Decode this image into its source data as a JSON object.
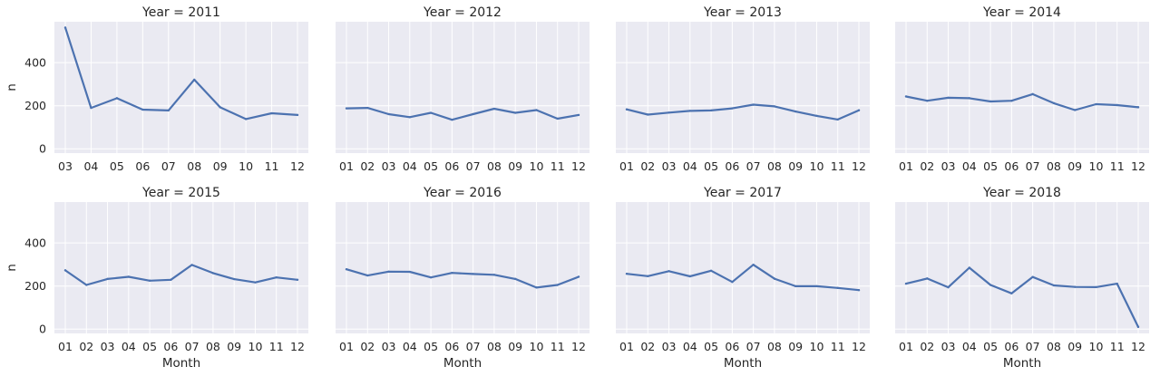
{
  "chart_data": [
    {
      "type": "line",
      "title": "Year = 2011",
      "xlabel": "",
      "ylabel": "n",
      "x": [
        "03",
        "04",
        "05",
        "06",
        "07",
        "08",
        "09",
        "10",
        "11",
        "12"
      ],
      "y": [
        563,
        190,
        235,
        182,
        178,
        321,
        193,
        138,
        165,
        157
      ]
    },
    {
      "type": "line",
      "title": "Year = 2012",
      "xlabel": "",
      "ylabel": "",
      "x": [
        "01",
        "02",
        "03",
        "04",
        "05",
        "06",
        "07",
        "08",
        "09",
        "10",
        "11",
        "12"
      ],
      "y": [
        188,
        190,
        161,
        147,
        167,
        135,
        161,
        186,
        167,
        180,
        140,
        157
      ]
    },
    {
      "type": "line",
      "title": "Year = 2013",
      "xlabel": "",
      "ylabel": "",
      "x": [
        "01",
        "02",
        "03",
        "04",
        "05",
        "06",
        "07",
        "08",
        "09",
        "10",
        "11",
        "12"
      ],
      "y": [
        183,
        159,
        168,
        176,
        178,
        188,
        205,
        197,
        173,
        153,
        136,
        179
      ]
    },
    {
      "type": "line",
      "title": "Year = 2014",
      "xlabel": "",
      "ylabel": "",
      "x": [
        "01",
        "02",
        "03",
        "04",
        "05",
        "06",
        "07",
        "08",
        "09",
        "10",
        "11",
        "12"
      ],
      "y": [
        243,
        223,
        237,
        235,
        220,
        223,
        254,
        212,
        180,
        207,
        203,
        193
      ]
    },
    {
      "type": "line",
      "title": "Year = 2015",
      "xlabel": "Month",
      "ylabel": "n",
      "x": [
        "01",
        "02",
        "03",
        "04",
        "05",
        "06",
        "07",
        "08",
        "09",
        "10",
        "11",
        "12"
      ],
      "y": [
        273,
        205,
        233,
        243,
        225,
        229,
        298,
        260,
        232,
        217,
        240,
        229
      ]
    },
    {
      "type": "line",
      "title": "Year = 2016",
      "xlabel": "Month",
      "ylabel": "",
      "x": [
        "01",
        "02",
        "03",
        "04",
        "05",
        "06",
        "07",
        "08",
        "09",
        "10",
        "11",
        "12"
      ],
      "y": [
        278,
        249,
        267,
        266,
        240,
        261,
        256,
        252,
        233,
        193,
        205,
        243
      ]
    },
    {
      "type": "line",
      "title": "Year = 2017",
      "xlabel": "Month",
      "ylabel": "",
      "x": [
        "01",
        "02",
        "03",
        "04",
        "05",
        "06",
        "07",
        "08",
        "09",
        "10",
        "11",
        "12"
      ],
      "y": [
        257,
        246,
        269,
        245,
        271,
        219,
        299,
        234,
        199,
        199,
        191,
        181
      ]
    },
    {
      "type": "line",
      "title": "Year = 2018",
      "xlabel": "Month",
      "ylabel": "",
      "x": [
        "01",
        "02",
        "03",
        "04",
        "05",
        "06",
        "07",
        "08",
        "09",
        "10",
        "11",
        "12"
      ],
      "y": [
        211,
        235,
        194,
        285,
        205,
        166,
        242,
        203,
        196,
        195,
        211,
        10
      ]
    }
  ],
  "shared_axes": {
    "ylim": [
      -20,
      590
    ],
    "yticks": [
      0,
      200,
      400
    ],
    "grid": true
  },
  "colors": {
    "line": "#4c72b0",
    "panel_bg": "#eaeaf2",
    "grid": "#ffffff",
    "text": "#262626"
  }
}
